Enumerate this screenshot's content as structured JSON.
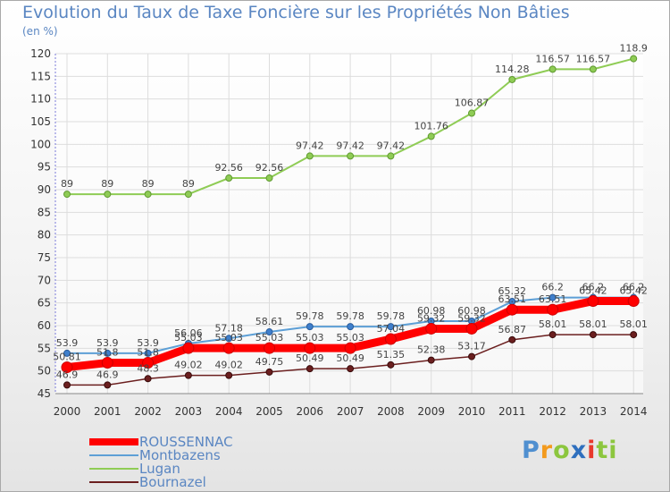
{
  "header": {
    "title": "Evolution du Taux de Taxe Foncière sur les Propriétés Non Bâties",
    "subtitle": "(en %)"
  },
  "logo": {
    "text": "Proxiti",
    "letters": [
      "P",
      "r",
      "o",
      "x",
      "i",
      "ti"
    ]
  },
  "chart_data": {
    "type": "line",
    "title": "Evolution du Taux de Taxe Foncière sur les Propriétés Non Bâties",
    "ylabel": "(en %)",
    "xlabel": "",
    "ylim": [
      45,
      120
    ],
    "yticks": [
      45,
      50,
      55,
      60,
      65,
      70,
      75,
      80,
      85,
      90,
      95,
      100,
      105,
      110,
      115,
      120
    ],
    "x": [
      "2000",
      "2001",
      "2002",
      "2003",
      "2004",
      "2005",
      "2006",
      "2007",
      "2008",
      "2009",
      "2010",
      "2011",
      "2012",
      "2013",
      "2014"
    ],
    "grid": true,
    "legend_position": "bottom-left",
    "series": [
      {
        "name": "ROUSSENNAC",
        "color": "#ff0000",
        "values": [
          50.81,
          51.8,
          51.8,
          55.03,
          55.03,
          55.03,
          55.03,
          55.03,
          57.04,
          59.32,
          59.32,
          63.51,
          63.51,
          65.42,
          65.42
        ],
        "labels": [
          "50.81",
          "51.8",
          "51.8",
          "55.03",
          "55.03",
          "55.03",
          "55.03",
          "55.03",
          "57.04",
          "59.32",
          "59.32",
          "63.51",
          "63.51",
          "65.42",
          "65.42"
        ]
      },
      {
        "name": "Montbazens",
        "color": "#5d9fd6",
        "values": [
          53.9,
          53.9,
          53.9,
          56.06,
          57.18,
          58.61,
          59.78,
          59.78,
          59.78,
          60.98,
          60.98,
          65.32,
          66.2,
          66.2,
          66.2
        ],
        "labels": [
          "53.9",
          "53.9",
          "53.9",
          "56.06",
          "57.18",
          "58.61",
          "59.78",
          "59.78",
          "59.78",
          "60.98",
          "60.98",
          "65.32",
          "66.2",
          "66.2",
          "66.2"
        ]
      },
      {
        "name": "Lugan",
        "color": "#8fcc55",
        "values": [
          89,
          89,
          89,
          89,
          92.56,
          92.56,
          97.42,
          97.42,
          97.42,
          101.76,
          106.87,
          114.28,
          116.57,
          116.57,
          118.9
        ],
        "labels": [
          "89",
          "89",
          "89",
          "89",
          "92.56",
          "92.56",
          "97.42",
          "97.42",
          "97.42",
          "101.76",
          "106.87",
          "114.28",
          "116.57",
          "116.57",
          "118.9"
        ]
      },
      {
        "name": "Bournazel",
        "color": "#6b1f1f",
        "values": [
          46.9,
          46.9,
          48.3,
          49.02,
          49.02,
          49.75,
          50.49,
          50.49,
          51.35,
          52.38,
          53.17,
          56.87,
          58.01,
          58.01,
          58.01
        ],
        "labels": [
          "46.9",
          "46.9",
          "48.3",
          "49.02",
          "49.02",
          "49.75",
          "50.49",
          "50.49",
          "51.35",
          "52.38",
          "53.17",
          "56.87",
          "58.01",
          "58.01",
          "58.01"
        ]
      }
    ]
  }
}
